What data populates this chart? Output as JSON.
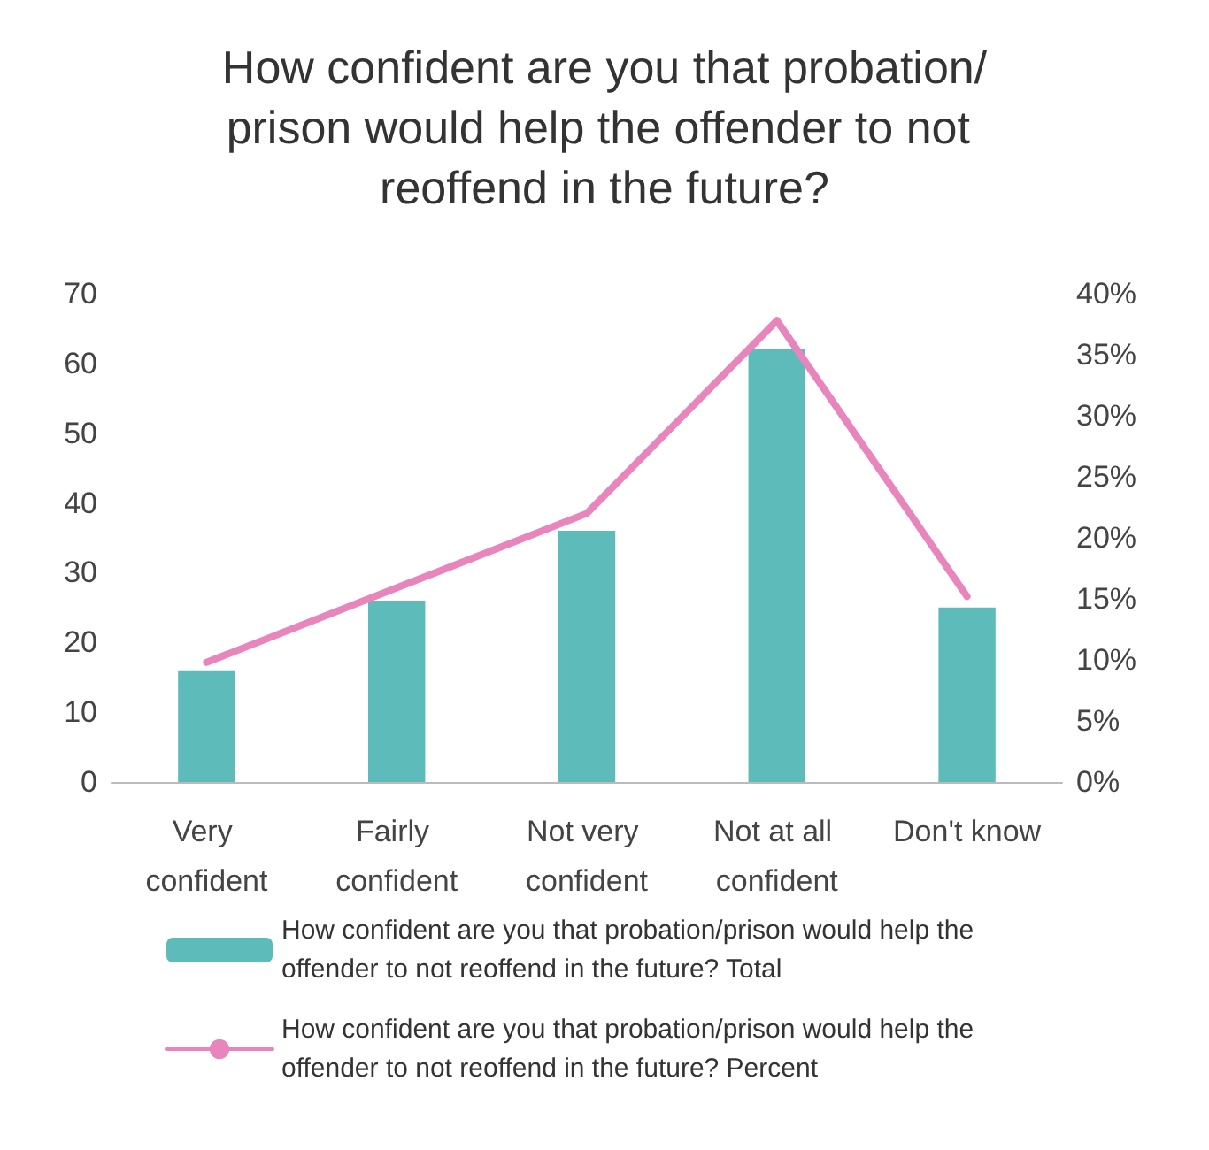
{
  "chart_data": {
    "type": "bar",
    "title": "How confident are you that probation/prison would help the offender to not reoffend in the future?",
    "categories": [
      "Very confident",
      "Fairly confident",
      "Not very confident",
      "Not at all confident",
      "Don't know"
    ],
    "series": [
      {
        "name": "How confident are you that probation/prison would help the offender to not reoffend in the future? Total",
        "color": "#5dbcb9",
        "values": [
          16,
          26,
          36,
          62,
          25
        ]
      },
      {
        "name": "How confident are you that probation/prison would help the offender to not reoffend in the future? Percent",
        "type": "line",
        "axis": "y2",
        "color": "#e985bd",
        "values": [
          9.8,
          15.9,
          22,
          37.8,
          15.2
        ]
      }
    ],
    "ylim": [
      0,
      70
    ],
    "yticks": [
      0,
      10,
      20,
      30,
      40,
      50,
      60,
      70
    ],
    "y2lim": [
      0,
      40
    ],
    "y2ticks": [
      {
        "value": 0,
        "label": "0%"
      },
      {
        "value": 5,
        "label": "5%"
      },
      {
        "value": 10,
        "label": "10%"
      },
      {
        "value": 15,
        "label": "15%"
      },
      {
        "value": 20,
        "label": "20%"
      },
      {
        "value": 25,
        "label": "25%"
      },
      {
        "value": 30,
        "label": "30%"
      },
      {
        "value": 35,
        "label": "35%"
      },
      {
        "value": 40,
        "label": "40%"
      }
    ],
    "legend": "bottom",
    "marker": "none",
    "line_style": "solid",
    "grid": false
  }
}
